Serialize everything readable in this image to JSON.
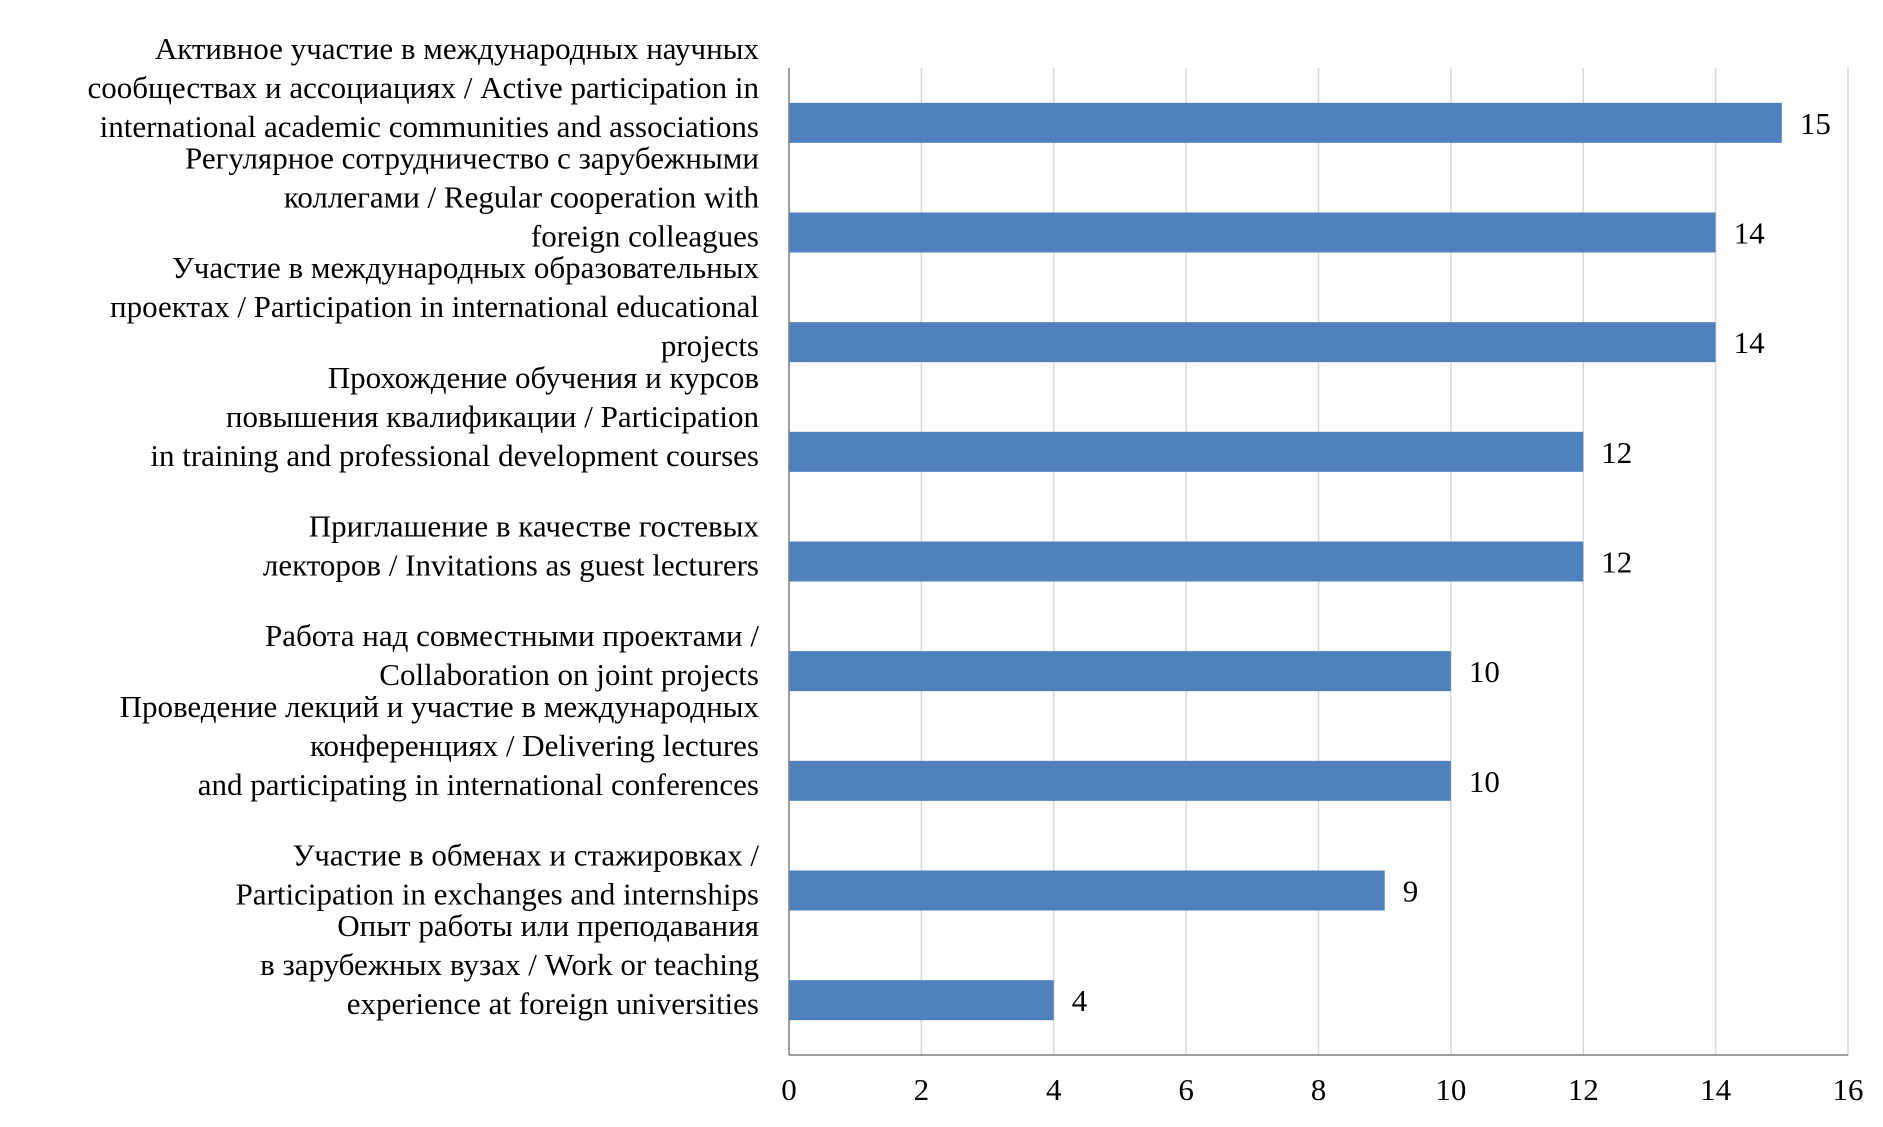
{
  "chart_data": {
    "type": "bar",
    "orientation": "horizontal",
    "title": "",
    "xlabel": "",
    "ylabel": "",
    "xlim": [
      0,
      16
    ],
    "x_ticks": [
      0,
      2,
      4,
      6,
      8,
      10,
      12,
      14,
      16
    ],
    "grid": "vertical",
    "bar_color": "#4f81bd",
    "grid_color": "#d9d9d9",
    "axis_color": "#7f7f7f",
    "categories": [
      {
        "lines": [
          "Активное участие в международных научных",
          "сообществах и ассоциациях / Active participation in",
          "international academic communities and associations"
        ],
        "value": 15
      },
      {
        "lines": [
          "Регулярное сотрудничество с зарубежными",
          "коллегами / Regular cooperation with",
          "foreign colleagues"
        ],
        "value": 14
      },
      {
        "lines": [
          "Участие в международных образовательных",
          "проектах / Participation in international educational",
          "projects"
        ],
        "value": 14
      },
      {
        "lines": [
          "Прохождение обучения и курсов",
          "повышения квалификации / Participation",
          "in training and professional development courses"
        ],
        "value": 12
      },
      {
        "lines": [
          "Приглашение в качестве гостевых",
          "лекторов / Invitations as guest lecturers"
        ],
        "value": 12
      },
      {
        "lines": [
          "Работа над совместными проектами /",
          "Collaboration on joint projects"
        ],
        "value": 10
      },
      {
        "lines": [
          "Проведение лекций и участие в международных",
          "конференциях / Delivering lectures",
          "and participating in international conferences"
        ],
        "value": 10
      },
      {
        "lines": [
          "Участие в обменах и стажировках /",
          "Participation in exchanges and internships"
        ],
        "value": 9
      },
      {
        "lines": [
          "Опыт работы или преподавания",
          "в зарубежных вузах / Work or teaching",
          "experience at foreign universities"
        ],
        "value": 4
      }
    ]
  }
}
